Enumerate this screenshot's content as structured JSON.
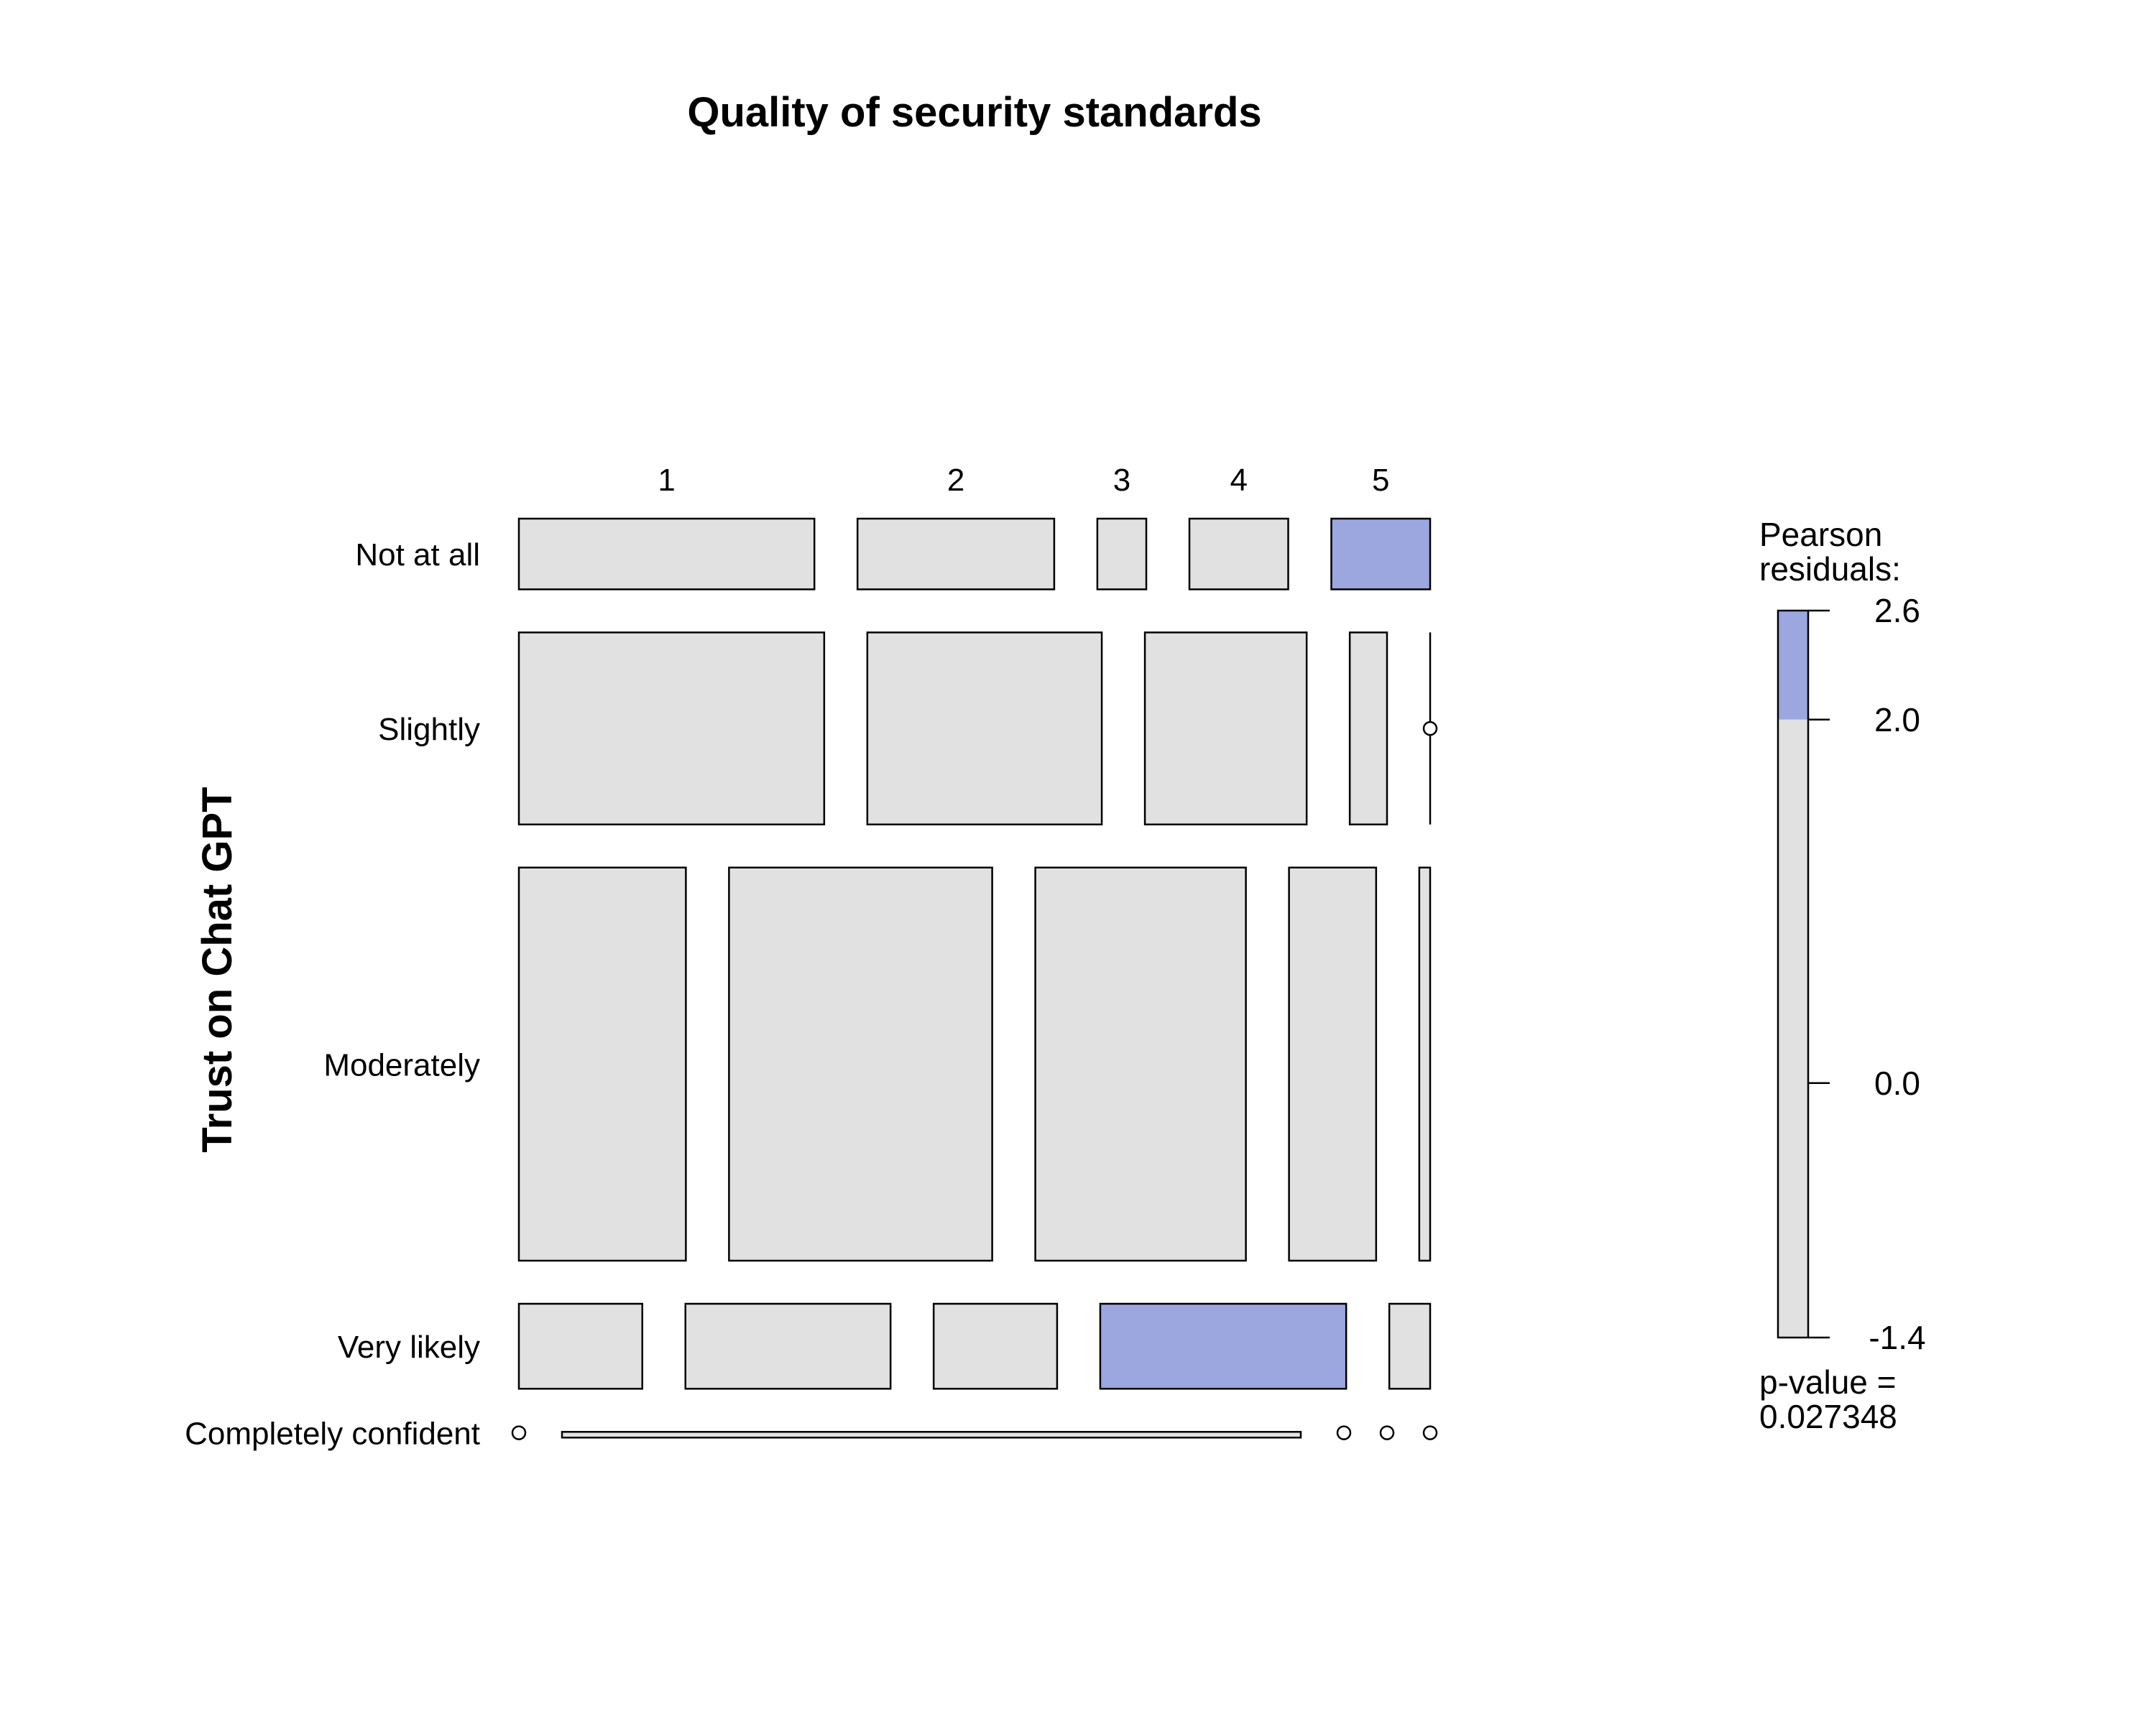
{
  "chart_data": {
    "type": "mosaic",
    "title": "Quality of security standards",
    "ylabel": "Trust on Chat GPT",
    "columns": [
      "1",
      "2",
      "3",
      "4",
      "5"
    ],
    "rows": [
      {
        "label": "Not at all",
        "cells": [
          {
            "value": 0.326,
            "residual": 0.5
          },
          {
            "value": 0.217,
            "residual": 0.3
          },
          {
            "value": 0.054,
            "residual": 0.2
          },
          {
            "value": 0.109,
            "residual": 0.1
          },
          {
            "value": 0.109,
            "residual": 2.6
          }
        ]
      },
      {
        "label": "Slightly",
        "cells": [
          {
            "value": 0.336,
            "residual": 0.6
          },
          {
            "value": 0.258,
            "residual": 0.2
          },
          {
            "value": 0.178,
            "residual": 0.4
          },
          {
            "value": 0.041,
            "residual": -0.4
          },
          {
            "value": 0.0,
            "residual": -1.4
          }
        ]
      },
      {
        "label": "Moderately",
        "cells": [
          {
            "value": 0.184,
            "residual": -0.8
          },
          {
            "value": 0.29,
            "residual": 0.7
          },
          {
            "value": 0.232,
            "residual": 0.5
          },
          {
            "value": 0.096,
            "residual": 0.3
          },
          {
            "value": 0.012,
            "residual": -0.9
          }
        ]
      },
      {
        "label": "Very likely",
        "cells": [
          {
            "value": 0.136,
            "residual": -0.3
          },
          {
            "value": 0.226,
            "residual": 0.1
          },
          {
            "value": 0.136,
            "residual": 0.0
          },
          {
            "value": 0.271,
            "residual": 2.3
          },
          {
            "value": 0.045,
            "residual": 0.2
          }
        ]
      },
      {
        "label": "Completely confident",
        "cells": [
          {
            "value": 0.0,
            "residual": -0.5
          },
          {
            "value": 1.0,
            "residual": 0.9
          },
          {
            "value": 0.0,
            "residual": -0.3
          },
          {
            "value": 0.0,
            "residual": -0.4
          },
          {
            "value": 0.0,
            "residual": -0.2
          }
        ]
      }
    ],
    "row_heights": [
      0.109,
      0.296,
      0.606,
      0.131,
      0.003
    ],
    "legend": {
      "title_line1": "Pearson",
      "title_line2": "residuals:",
      "ticks": [
        "2.6",
        "2.0",
        "0.0",
        "-1.4"
      ],
      "tick_values": [
        2.6,
        2.0,
        0.0,
        -1.4
      ],
      "range": [
        -1.4,
        2.6
      ],
      "threshold": 2.0,
      "pvalue_label": "p-value =",
      "pvalue": "0.027348"
    },
    "colors": {
      "neutral": "#e1e1e1",
      "positive": "#9ca7e0",
      "stroke": "#000000"
    }
  }
}
